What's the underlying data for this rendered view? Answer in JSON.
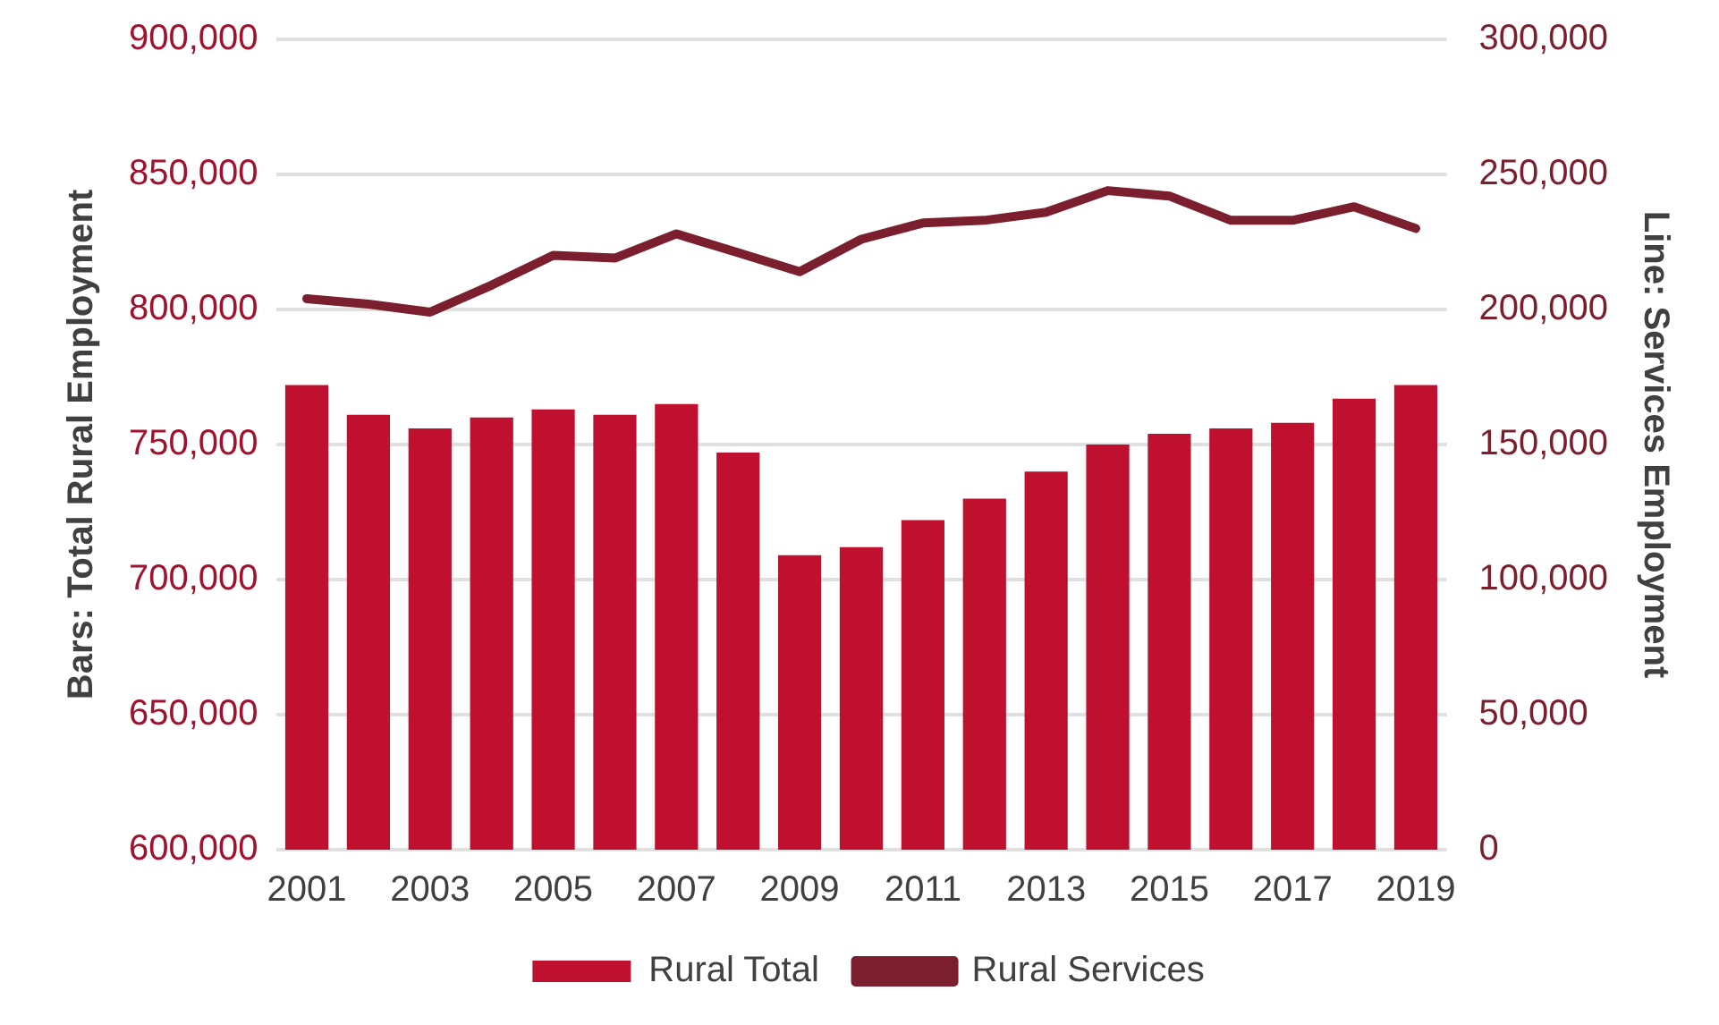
{
  "chart_data": {
    "type": "bar",
    "ylabel": "Bars: Total Rural Employment",
    "y2label": "Line: Services Employment",
    "categories": [
      "2001",
      null,
      "2003",
      null,
      "2005",
      null,
      "2007",
      null,
      "2009",
      null,
      "2011",
      null,
      "2013",
      null,
      "2015",
      null,
      "2017",
      null,
      "2019"
    ],
    "series": [
      {
        "name": "Rural Total",
        "color": "#c0102f",
        "values": [
          772000,
          761000,
          756000,
          760000,
          763000,
          761000,
          765000,
          747000,
          709000,
          712000,
          722000,
          730000,
          740000,
          750000,
          754000,
          756000,
          758000,
          767000,
          772000
        ]
      },
      {
        "name": "Rural Services",
        "type": "line",
        "axis": "y2",
        "color": "#7b1f2e",
        "values": [
          204000,
          202000,
          199000,
          209000,
          220000,
          219000,
          228000,
          221000,
          214000,
          226000,
          232000,
          233000,
          236000,
          244000,
          242000,
          233000,
          233000,
          238000,
          230000
        ]
      }
    ],
    "ylim": [
      600000,
      900000
    ],
    "yticks": [
      {
        "value": 600000,
        "label": "600,000"
      },
      {
        "value": 650000,
        "label": "650,000"
      },
      {
        "value": 700000,
        "label": "700,000"
      },
      {
        "value": 750000,
        "label": "750,000"
      },
      {
        "value": 800000,
        "label": "800,000"
      },
      {
        "value": 850000,
        "label": "850,000"
      },
      {
        "value": 900000,
        "label": "900,000"
      }
    ],
    "y2lim": [
      0,
      300000
    ],
    "y2ticks": [
      0,
      {
        "value": 50000,
        "label": "50,000"
      },
      {
        "value": 100000,
        "label": "100,000"
      },
      {
        "value": 150000,
        "label": "150,000"
      },
      {
        "value": 200000,
        "label": "200,000"
      },
      {
        "value": 250000,
        "label": "250,000"
      },
      {
        "value": 300000,
        "label": "300,000"
      }
    ],
    "grid": "y",
    "legend": "bottom",
    "marker": "none",
    "line_style": "solid"
  }
}
